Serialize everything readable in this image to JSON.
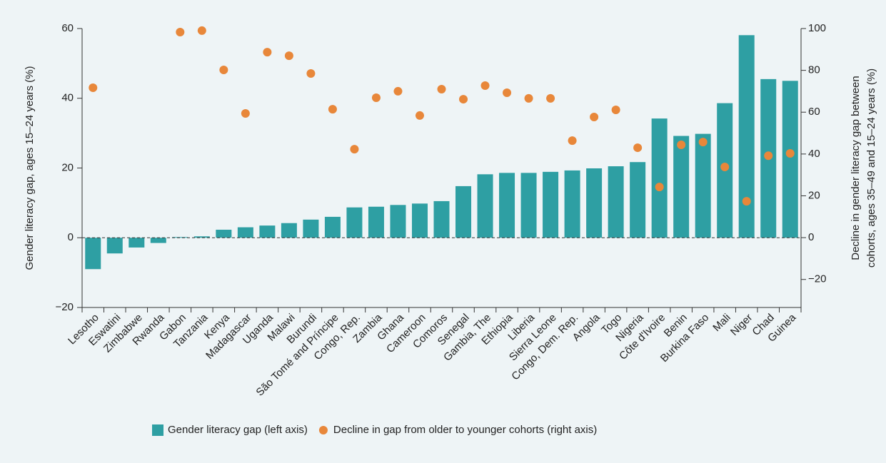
{
  "chart_data": {
    "type": "bar",
    "y_label": "Gender literacy gap, ages 15–24 years (%)",
    "y2_label": [
      "Decline in gender literacy gap between",
      "cohorts, ages 35–49 and 15–24 years (%)"
    ],
    "categories": [
      "Lesotho",
      "Eswatini",
      "Zimbabwe",
      "Rwanda",
      "Gabon",
      "Tanzania",
      "Kenya",
      "Madagascar",
      "Uganda",
      "Malawi",
      "Burundi",
      "São Tomé and Príncipe",
      "Congo, Rep.",
      "Zambia",
      "Ghana",
      "Cameroon",
      "Comoros",
      "Senegal",
      "Gambia, The",
      "Ethiopia",
      "Liberia",
      "Sierra Leone",
      "Congo, Dem. Rep.",
      "Angola",
      "Togo",
      "Nigeria",
      "Côte d'Ivoire",
      "Benin",
      "Burkina Faso",
      "Mali",
      "Niger",
      "Chad",
      "Guinea"
    ],
    "series": [
      {
        "name": "Gender literacy gap (left axis)",
        "type": "bar",
        "color": "#2e9fa3",
        "values": [
          -9,
          -4.5,
          -2.8,
          -1.5,
          0.2,
          0.4,
          2.3,
          3,
          3.5,
          4.2,
          5.2,
          6,
          8.7,
          8.9,
          9.4,
          9.8,
          10.5,
          14.8,
          18.2,
          18.6,
          18.6,
          18.9,
          19.3,
          19.9,
          20.5,
          21.7,
          34.2,
          29.2,
          29.8,
          38.6,
          58.1,
          45.5,
          45.0
        ]
      },
      {
        "name": "Decline in gap from older to younger cohorts (right axis)",
        "type": "scatter",
        "axis": "y2",
        "color": "#e8873a",
        "values": [
          71.7,
          null,
          null,
          null,
          98.3,
          99,
          80.2,
          59.4,
          88.7,
          87,
          78.5,
          61.4,
          42.3,
          66.9,
          70,
          58.4,
          71,
          66.2,
          72.7,
          69.3,
          66.6,
          66.6,
          46.4,
          57.7,
          61.1,
          43,
          24.2,
          44.4,
          45.7,
          33.8,
          17.4,
          39.2,
          40.3
        ]
      }
    ],
    "ylim": [
      -20,
      60
    ],
    "yticks": [
      {
        "value": -20,
        "label": "−20"
      },
      0,
      20,
      40,
      60
    ],
    "y2lim": [
      -33.4,
      100
    ],
    "y2ticks": [
      {
        "value": -20,
        "label": "−20"
      },
      0,
      20,
      40,
      60,
      80,
      100
    ],
    "legend": "bottom"
  }
}
